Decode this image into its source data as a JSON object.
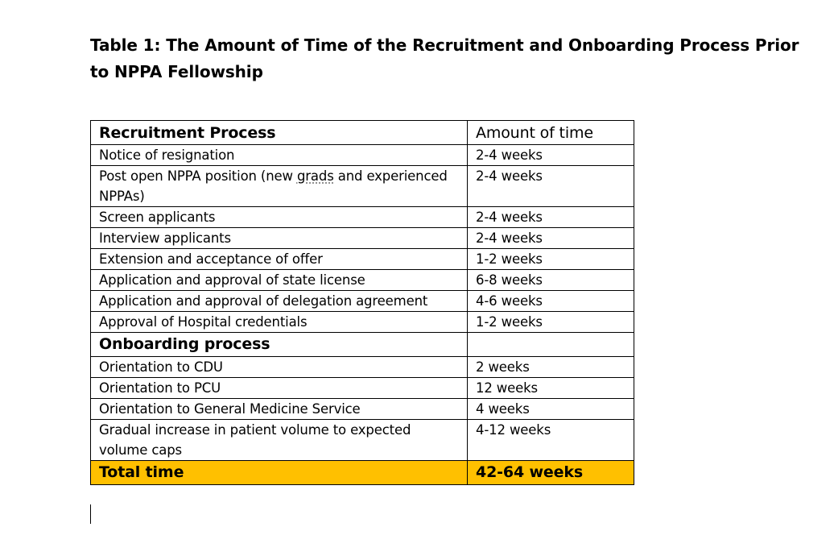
{
  "document": {
    "title": "Table 1:  The Amount of Time of the Recruitment and Onboarding Process Prior to NPPA Fellowship"
  },
  "table": {
    "header": {
      "col1": "Recruitment Process",
      "col2": "Amount of time"
    },
    "recruitment_rows": [
      {
        "task": "Notice of resignation",
        "time": "2-4 weeks"
      },
      {
        "task_before": "Post open NPPA position (new ",
        "task_flagged": "grads",
        "task_after": " and experienced NPPAs)",
        "time": "2-4 weeks"
      },
      {
        "task": "Screen applicants",
        "time": "2-4 weeks"
      },
      {
        "task": "Interview applicants",
        "time": "2-4 weeks"
      },
      {
        "task": "Extension and acceptance of offer",
        "time": "1-2 weeks"
      },
      {
        "task": "Application and approval of state license",
        "time": "6-8 weeks"
      },
      {
        "task": "Application and approval of delegation agreement",
        "time": "4-6 weeks"
      },
      {
        "task": "Approval of Hospital credentials",
        "time": "1-2 weeks"
      }
    ],
    "section_onboarding": {
      "col1": "Onboarding process",
      "col2": ""
    },
    "onboarding_rows": [
      {
        "task": "Orientation to CDU",
        "time": "2 weeks"
      },
      {
        "task": "Orientation to PCU",
        "time": "12 weeks"
      },
      {
        "task": "Orientation to General Medicine Service",
        "time": "4 weeks"
      },
      {
        "task": "Gradual increase in patient volume to expected volume caps",
        "time": "4-12 weeks"
      }
    ],
    "total": {
      "label": "Total time",
      "value": "42-64 weeks",
      "highlight_color": "#ffc000"
    }
  }
}
